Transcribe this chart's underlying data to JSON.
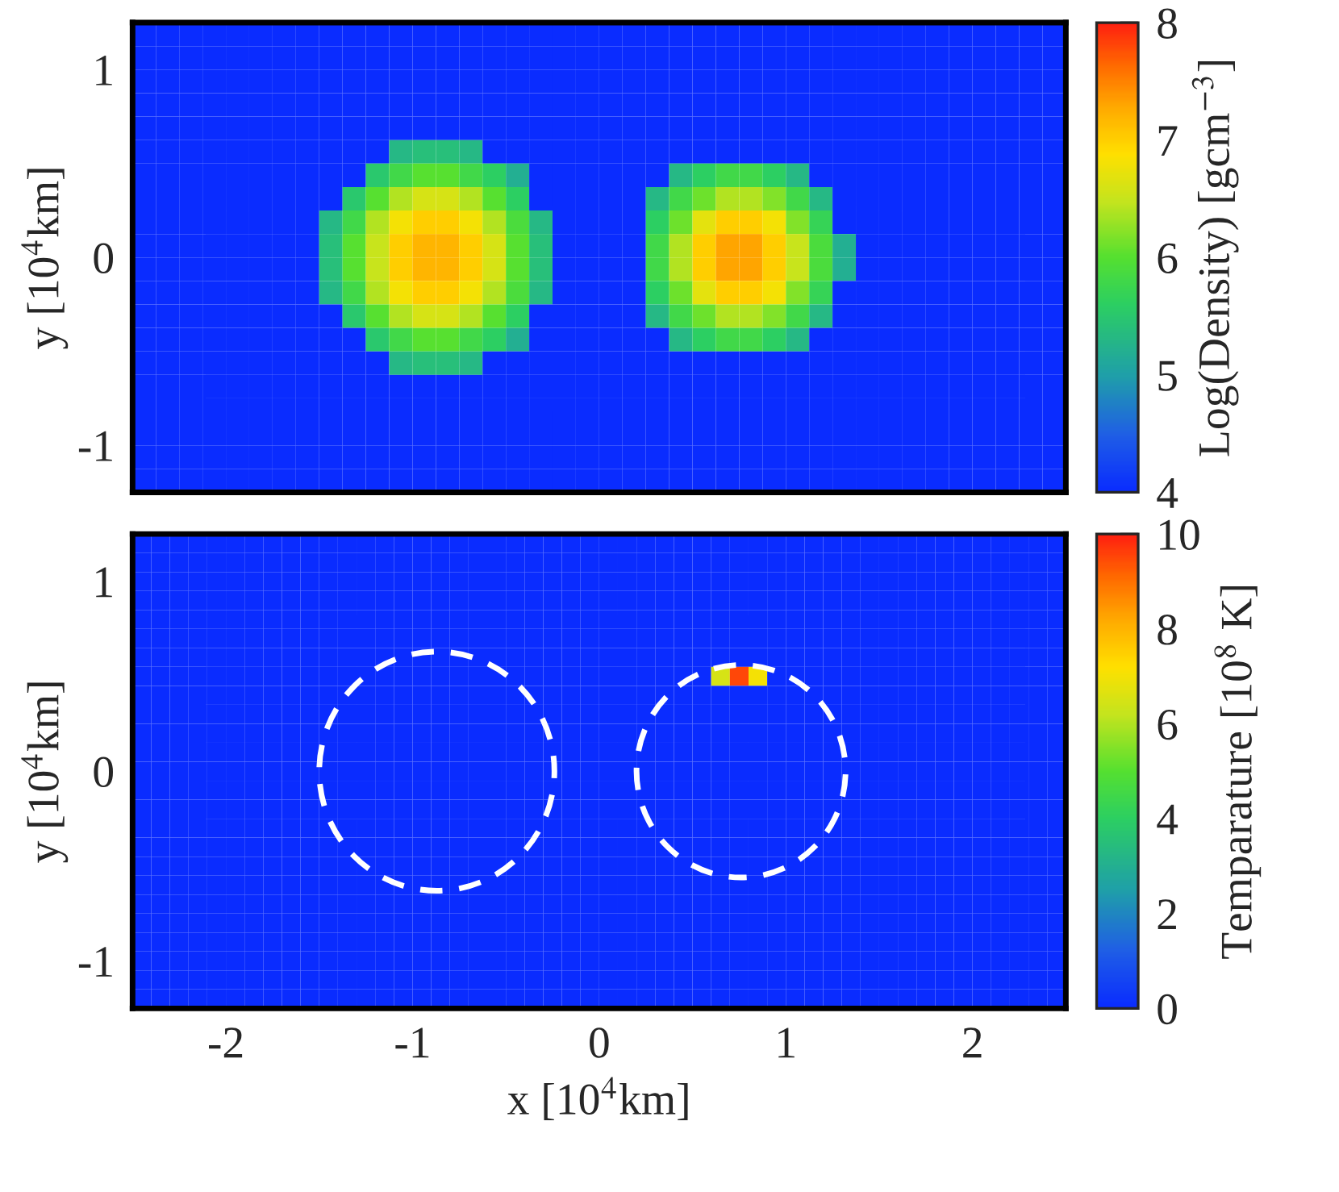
{
  "chart_data": [
    {
      "type": "heatmap",
      "ylabel": "y [10$^{4}$km]",
      "clabel": "Log(Density) [gcm$^{−3}$]",
      "xlim": [
        -2.5,
        2.5
      ],
      "xticks": [
        -2,
        -1,
        0,
        1,
        2
      ],
      "ylim": [
        -1.25,
        1.25
      ],
      "yticks": [
        -1,
        0,
        1
      ],
      "tick_labels": "y",
      "clim": [
        4,
        8
      ],
      "cticks": [
        4,
        5,
        6,
        7,
        8
      ],
      "cells": [
        [
          4,
          4,
          4,
          4,
          4,
          4,
          4,
          4,
          4,
          4,
          4,
          4,
          4,
          4,
          4,
          4,
          4,
          4,
          4,
          4,
          4,
          4,
          4,
          4,
          4,
          4,
          4,
          4,
          4,
          4,
          4,
          4,
          4,
          4,
          4,
          4,
          4,
          4,
          4,
          4
        ],
        [
          4,
          4,
          4,
          4,
          4,
          4,
          4,
          4,
          4,
          4,
          4,
          4,
          4,
          4,
          4,
          4,
          4,
          4,
          4,
          4,
          4,
          4,
          4,
          4,
          4,
          4,
          4,
          4,
          4,
          4,
          4,
          4,
          4,
          4,
          4,
          4,
          4,
          4,
          4,
          4
        ],
        [
          4,
          4,
          4,
          4,
          4,
          4,
          4,
          4,
          4,
          4,
          4,
          4,
          4,
          4,
          4,
          4,
          4,
          4,
          4,
          4,
          4,
          4,
          4,
          4,
          4,
          4,
          4,
          4,
          4,
          4,
          4,
          4,
          4,
          4,
          4,
          4,
          4,
          4,
          4,
          4
        ],
        [
          4,
          4,
          4,
          4,
          4,
          4,
          4,
          4,
          4,
          4,
          4,
          4,
          4,
          4,
          4,
          4,
          4,
          4,
          4,
          4,
          4,
          4,
          4,
          4,
          4,
          4,
          4,
          4,
          4,
          4,
          4,
          4,
          4,
          4,
          4,
          4,
          4,
          4,
          4,
          4
        ],
        [
          4,
          4,
          4,
          4,
          4,
          4,
          4,
          4,
          4,
          4,
          4,
          4,
          4,
          4,
          4,
          4,
          4,
          4,
          4,
          4,
          4,
          4,
          4,
          4,
          4,
          4,
          4,
          4,
          4,
          4,
          4,
          4,
          4,
          4,
          4,
          4,
          4,
          4,
          4,
          4
        ],
        [
          4,
          4,
          4,
          4,
          4,
          4,
          4,
          4,
          4,
          4,
          4,
          5.3,
          5.4,
          5.4,
          5.3,
          4,
          4,
          4,
          4,
          4,
          4,
          4,
          4,
          4,
          4,
          4,
          4,
          4,
          4,
          4,
          4,
          4,
          4,
          4,
          4,
          4,
          4,
          4,
          4,
          4
        ],
        [
          4,
          4,
          4,
          4,
          4,
          4,
          4,
          4,
          4,
          4,
          5.5,
          5.8,
          6.0,
          6.0,
          5.8,
          5.6,
          5.2,
          4,
          4,
          4,
          4,
          4,
          4,
          5.3,
          5.6,
          5.8,
          5.8,
          5.6,
          5.3,
          4,
          4,
          4,
          4,
          4,
          4,
          4,
          4,
          4,
          4,
          4
        ],
        [
          4,
          4,
          4,
          4,
          4,
          4,
          4,
          4,
          4,
          5.5,
          6.0,
          6.4,
          6.6,
          6.6,
          6.4,
          6.0,
          5.6,
          4,
          4,
          4,
          4,
          4,
          5.3,
          5.8,
          6.1,
          6.4,
          6.4,
          6.2,
          5.8,
          5.3,
          4,
          4,
          4,
          4,
          4,
          4,
          4,
          4,
          4,
          4
        ],
        [
          4,
          4,
          4,
          4,
          4,
          4,
          4,
          4,
          5.3,
          5.8,
          6.4,
          6.8,
          7.0,
          7.0,
          6.8,
          6.4,
          5.9,
          5.3,
          4,
          4,
          4,
          4,
          5.6,
          6.1,
          6.7,
          7.0,
          7.0,
          6.8,
          6.2,
          5.7,
          4,
          4,
          4,
          4,
          4,
          4,
          4,
          4,
          4,
          4
        ],
        [
          4,
          4,
          4,
          4,
          4,
          4,
          4,
          4,
          5.4,
          6.0,
          6.5,
          7.0,
          7.2,
          7.2,
          7.0,
          6.6,
          6.0,
          5.4,
          4,
          4,
          4,
          4,
          5.8,
          6.4,
          7.0,
          7.3,
          7.3,
          7.0,
          6.5,
          5.9,
          5.2,
          4,
          4,
          4,
          4,
          4,
          4,
          4,
          4,
          4
        ],
        [
          4,
          4,
          4,
          4,
          4,
          4,
          4,
          4,
          5.4,
          6.0,
          6.5,
          7.0,
          7.2,
          7.2,
          7.0,
          6.6,
          6.0,
          5.4,
          4,
          4,
          4,
          4,
          5.8,
          6.4,
          7.0,
          7.3,
          7.3,
          7.0,
          6.5,
          5.9,
          5.2,
          4,
          4,
          4,
          4,
          4,
          4,
          4,
          4,
          4
        ],
        [
          4,
          4,
          4,
          4,
          4,
          4,
          4,
          4,
          5.3,
          5.8,
          6.4,
          6.8,
          7.0,
          7.0,
          6.8,
          6.4,
          5.9,
          5.3,
          4,
          4,
          4,
          4,
          5.6,
          6.1,
          6.7,
          7.0,
          7.0,
          6.8,
          6.2,
          5.7,
          4,
          4,
          4,
          4,
          4,
          4,
          4,
          4,
          4,
          4
        ],
        [
          4,
          4,
          4,
          4,
          4,
          4,
          4,
          4,
          4,
          5.5,
          6.0,
          6.4,
          6.6,
          6.6,
          6.4,
          6.0,
          5.6,
          4,
          4,
          4,
          4,
          4,
          5.3,
          5.8,
          6.1,
          6.4,
          6.4,
          6.2,
          5.8,
          5.3,
          4,
          4,
          4,
          4,
          4,
          4,
          4,
          4,
          4,
          4
        ],
        [
          4,
          4,
          4,
          4,
          4,
          4,
          4,
          4,
          4,
          4,
          5.5,
          5.8,
          6.0,
          6.0,
          5.8,
          5.6,
          5.2,
          4,
          4,
          4,
          4,
          4,
          4,
          5.3,
          5.6,
          5.8,
          5.8,
          5.6,
          5.3,
          4,
          4,
          4,
          4,
          4,
          4,
          4,
          4,
          4,
          4,
          4
        ],
        [
          4,
          4,
          4,
          4,
          4,
          4,
          4,
          4,
          4,
          4,
          4,
          5.3,
          5.4,
          5.4,
          5.3,
          4,
          4,
          4,
          4,
          4,
          4,
          4,
          4,
          4,
          4,
          4,
          4,
          4,
          4,
          4,
          4,
          4,
          4,
          4,
          4,
          4,
          4,
          4,
          4,
          4
        ],
        [
          4,
          4,
          4,
          4,
          4,
          4,
          4,
          4,
          4,
          4,
          4,
          4,
          4,
          4,
          4,
          4,
          4,
          4,
          4,
          4,
          4,
          4,
          4,
          4,
          4,
          4,
          4,
          4,
          4,
          4,
          4,
          4,
          4,
          4,
          4,
          4,
          4,
          4,
          4,
          4
        ],
        [
          4,
          4,
          4,
          4,
          4,
          4,
          4,
          4,
          4,
          4,
          4,
          4,
          4,
          4,
          4,
          4,
          4,
          4,
          4,
          4,
          4,
          4,
          4,
          4,
          4,
          4,
          4,
          4,
          4,
          4,
          4,
          4,
          4,
          4,
          4,
          4,
          4,
          4,
          4,
          4
        ],
        [
          4,
          4,
          4,
          4,
          4,
          4,
          4,
          4,
          4,
          4,
          4,
          4,
          4,
          4,
          4,
          4,
          4,
          4,
          4,
          4,
          4,
          4,
          4,
          4,
          4,
          4,
          4,
          4,
          4,
          4,
          4,
          4,
          4,
          4,
          4,
          4,
          4,
          4,
          4,
          4
        ],
        [
          4,
          4,
          4,
          4,
          4,
          4,
          4,
          4,
          4,
          4,
          4,
          4,
          4,
          4,
          4,
          4,
          4,
          4,
          4,
          4,
          4,
          4,
          4,
          4,
          4,
          4,
          4,
          4,
          4,
          4,
          4,
          4,
          4,
          4,
          4,
          4,
          4,
          4,
          4,
          4
        ],
        [
          4,
          4,
          4,
          4,
          4,
          4,
          4,
          4,
          4,
          4,
          4,
          4,
          4,
          4,
          4,
          4,
          4,
          4,
          4,
          4,
          4,
          4,
          4,
          4,
          4,
          4,
          4,
          4,
          4,
          4,
          4,
          4,
          4,
          4,
          4,
          4,
          4,
          4,
          4,
          4
        ]
      ]
    },
    {
      "type": "heatmap",
      "xlabel": "x [10$^{4}$km]",
      "ylabel": "y [10$^{4}$km]",
      "clabel": "Temparature [10$^{8}$ K]",
      "xlim": [
        -2.5,
        2.5
      ],
      "xticks": [
        -2,
        -1,
        0,
        1,
        2
      ],
      "ylim": [
        -1.25,
        1.25
      ],
      "yticks": [
        -1,
        0,
        1
      ],
      "clim": [
        0,
        10
      ],
      "cticks": [
        0,
        2,
        4,
        6,
        8,
        10
      ],
      "cells": [
        [
          0,
          0,
          0,
          0,
          0,
          0,
          0,
          0,
          0,
          0,
          0,
          0,
          0,
          0,
          0,
          0,
          0,
          0,
          0,
          0,
          0,
          0,
          0,
          0,
          0,
          0,
          0,
          0,
          0,
          0,
          0,
          0,
          0,
          0,
          0,
          0,
          0,
          0,
          0,
          0,
          0,
          0,
          0,
          0,
          0,
          0,
          0,
          0,
          0,
          0
        ],
        [
          0,
          0,
          0,
          0,
          0,
          0,
          0,
          0,
          0,
          0,
          0,
          0,
          0,
          0,
          0,
          0,
          0,
          0,
          0,
          0,
          0,
          0,
          0,
          0,
          0,
          0,
          0,
          0,
          0,
          0,
          0,
          0,
          0,
          0,
          0,
          0,
          0,
          0,
          0,
          0,
          0,
          0,
          0,
          0,
          0,
          0,
          0,
          0,
          0,
          0
        ],
        [
          0,
          0,
          0,
          0,
          0,
          0,
          0,
          0,
          0,
          0,
          0,
          0,
          0,
          0,
          0,
          0,
          0,
          0,
          0,
          0,
          0,
          0,
          0,
          0,
          0,
          0,
          0,
          0,
          0,
          0,
          0,
          0,
          0,
          0,
          0,
          0,
          0,
          0,
          0,
          0,
          0,
          0,
          0,
          0,
          0,
          0,
          0,
          0,
          0,
          0
        ],
        [
          0,
          0,
          0,
          0,
          0,
          0,
          0,
          0,
          0,
          0,
          0,
          0,
          0,
          0,
          0,
          0,
          0,
          0,
          0,
          0,
          0,
          0,
          0,
          0,
          0,
          0,
          0,
          0,
          0,
          0,
          0,
          0,
          0,
          0,
          0,
          0,
          0,
          0,
          0,
          0,
          0,
          0,
          0,
          0,
          0,
          0,
          0,
          0,
          0,
          0
        ],
        [
          0,
          0,
          0,
          0,
          0,
          0,
          0,
          0,
          0,
          0,
          0,
          0,
          0,
          0,
          0,
          0,
          0,
          0,
          0,
          0,
          0,
          0,
          0,
          0,
          0,
          0,
          0,
          0,
          0,
          0,
          0,
          0,
          0,
          0,
          0,
          0,
          0,
          0,
          0,
          0,
          0,
          0,
          0,
          0,
          0,
          0,
          0,
          0,
          0,
          0
        ],
        [
          0,
          0,
          0,
          0,
          0,
          0,
          0,
          0,
          0,
          0,
          0,
          0,
          0,
          0,
          0,
          0,
          0,
          0,
          0,
          0,
          0,
          0,
          0,
          0,
          0,
          0,
          0,
          0,
          0,
          0,
          0,
          0,
          0,
          0,
          0,
          0,
          0,
          0,
          0,
          0,
          0,
          0,
          0,
          0,
          0,
          0,
          0,
          0,
          0,
          0
        ],
        [
          0,
          0,
          0,
          0,
          0,
          0,
          0,
          0,
          0,
          0,
          0,
          0,
          0,
          0,
          0,
          0,
          0,
          0,
          0,
          0,
          0,
          0,
          0,
          0,
          0,
          0,
          0,
          0,
          0,
          0,
          0,
          0,
          0,
          0,
          0,
          0,
          0,
          0,
          0,
          0,
          0,
          0,
          0,
          0,
          0,
          0,
          0,
          0,
          0,
          0
        ],
        [
          0,
          0,
          0,
          0,
          0,
          0,
          0,
          0,
          0,
          0,
          0,
          0,
          0,
          0,
          0,
          0,
          0,
          0,
          0,
          0,
          0,
          0,
          0,
          0,
          0,
          0,
          0,
          0,
          0,
          0,
          0,
          6.5,
          9.5,
          7,
          0,
          0,
          0,
          0,
          0,
          0,
          0,
          0,
          0,
          0,
          0,
          0,
          0,
          0,
          0,
          0
        ],
        [
          0,
          0,
          0,
          0,
          0,
          0,
          0,
          0,
          0,
          0,
          0,
          0,
          0,
          0,
          0,
          0,
          0,
          0,
          0,
          0,
          0,
          0,
          0,
          0,
          0,
          0,
          0,
          0,
          0,
          0,
          0,
          0,
          0,
          0,
          0,
          0,
          0,
          0,
          0,
          0,
          0,
          0,
          0,
          0,
          0,
          0,
          0,
          0,
          0,
          0
        ],
        [
          0,
          0,
          0,
          0,
          0,
          0,
          0,
          0,
          0,
          0,
          0,
          0,
          0,
          0,
          0,
          0,
          0,
          0,
          0,
          0,
          0,
          0,
          0,
          0,
          0,
          0,
          0,
          0,
          0,
          0,
          0,
          0,
          0,
          0,
          0,
          0,
          0,
          0,
          0,
          0,
          0,
          0,
          0,
          0,
          0,
          0,
          0,
          0,
          0,
          0
        ],
        [
          0,
          0,
          0,
          0,
          0,
          0,
          0,
          0,
          0,
          0,
          0,
          0,
          0,
          0,
          0,
          0,
          0,
          0,
          0,
          0,
          0,
          0,
          0,
          0,
          0,
          0,
          0,
          0,
          0,
          0,
          0,
          0,
          0,
          0,
          0,
          0,
          0,
          0,
          0,
          0,
          0,
          0,
          0,
          0,
          0,
          0,
          0,
          0,
          0,
          0
        ],
        [
          0,
          0,
          0,
          0,
          0,
          0,
          0,
          0,
          0,
          0,
          0,
          0,
          0,
          0,
          0,
          0,
          0,
          0,
          0,
          0,
          0,
          0,
          0,
          0,
          0,
          0,
          0,
          0,
          0,
          0,
          0,
          0,
          0,
          0,
          0,
          0,
          0,
          0,
          0,
          0,
          0,
          0,
          0,
          0,
          0,
          0,
          0,
          0,
          0,
          0
        ],
        [
          0,
          0,
          0,
          0,
          0,
          0,
          0,
          0,
          0,
          0,
          0,
          0,
          0,
          0,
          0,
          0,
          0,
          0,
          0,
          0,
          0,
          0,
          0,
          0,
          0,
          0,
          0,
          0,
          0,
          0,
          0,
          0,
          0,
          0,
          0,
          0,
          0,
          0,
          0,
          0,
          0,
          0,
          0,
          0,
          0,
          0,
          0,
          0,
          0,
          0
        ],
        [
          0,
          0,
          0,
          0,
          0,
          0,
          0,
          0,
          0,
          0,
          0,
          0,
          0,
          0,
          0,
          0,
          0,
          0,
          0,
          0,
          0,
          0,
          0,
          0,
          0,
          0,
          0,
          0,
          0,
          0,
          0,
          0,
          0,
          0,
          0,
          0,
          0,
          0,
          0,
          0,
          0,
          0,
          0,
          0,
          0,
          0,
          0,
          0,
          0,
          0
        ],
        [
          0,
          0,
          0,
          0,
          0,
          0,
          0,
          0,
          0,
          0,
          0,
          0,
          0,
          0,
          0,
          0,
          0,
          0,
          0,
          0,
          0,
          0,
          0,
          0,
          0,
          0,
          0,
          0,
          0,
          0,
          0,
          0,
          0,
          0,
          0,
          0,
          0,
          0,
          0,
          0,
          0,
          0,
          0,
          0,
          0,
          0,
          0,
          0,
          0,
          0
        ],
        [
          0,
          0,
          0,
          0,
          0,
          0,
          0,
          0,
          0,
          0,
          0,
          0,
          0,
          0,
          0,
          0,
          0,
          0,
          0,
          0,
          0,
          0,
          0,
          0,
          0,
          0,
          0,
          0,
          0,
          0,
          0,
          0,
          0,
          0,
          0,
          0,
          0,
          0,
          0,
          0,
          0,
          0,
          0,
          0,
          0,
          0,
          0,
          0,
          0,
          0
        ],
        [
          0,
          0,
          0,
          0,
          0,
          0,
          0,
          0,
          0,
          0,
          0,
          0,
          0,
          0,
          0,
          0,
          0,
          0,
          0,
          0,
          0,
          0,
          0,
          0,
          0,
          0,
          0,
          0,
          0,
          0,
          0,
          0,
          0,
          0,
          0,
          0,
          0,
          0,
          0,
          0,
          0,
          0,
          0,
          0,
          0,
          0,
          0,
          0,
          0,
          0
        ],
        [
          0,
          0,
          0,
          0,
          0,
          0,
          0,
          0,
          0,
          0,
          0,
          0,
          0,
          0,
          0,
          0,
          0,
          0,
          0,
          0,
          0,
          0,
          0,
          0,
          0,
          0,
          0,
          0,
          0,
          0,
          0,
          0,
          0,
          0,
          0,
          0,
          0,
          0,
          0,
          0,
          0,
          0,
          0,
          0,
          0,
          0,
          0,
          0,
          0,
          0
        ],
        [
          0,
          0,
          0,
          0,
          0,
          0,
          0,
          0,
          0,
          0,
          0,
          0,
          0,
          0,
          0,
          0,
          0,
          0,
          0,
          0,
          0,
          0,
          0,
          0,
          0,
          0,
          0,
          0,
          0,
          0,
          0,
          0,
          0,
          0,
          0,
          0,
          0,
          0,
          0,
          0,
          0,
          0,
          0,
          0,
          0,
          0,
          0,
          0,
          0,
          0
        ],
        [
          0,
          0,
          0,
          0,
          0,
          0,
          0,
          0,
          0,
          0,
          0,
          0,
          0,
          0,
          0,
          0,
          0,
          0,
          0,
          0,
          0,
          0,
          0,
          0,
          0,
          0,
          0,
          0,
          0,
          0,
          0,
          0,
          0,
          0,
          0,
          0,
          0,
          0,
          0,
          0,
          0,
          0,
          0,
          0,
          0,
          0,
          0,
          0,
          0,
          0
        ],
        [
          0,
          0,
          0,
          0,
          0,
          0,
          0,
          0,
          0,
          0,
          0,
          0,
          0,
          0,
          0,
          0,
          0,
          0,
          0,
          0,
          0,
          0,
          0,
          0,
          0,
          0,
          0,
          0,
          0,
          0,
          0,
          0,
          0,
          0,
          0,
          0,
          0,
          0,
          0,
          0,
          0,
          0,
          0,
          0,
          0,
          0,
          0,
          0,
          0,
          0
        ],
        [
          0,
          0,
          0,
          0,
          0,
          0,
          0,
          0,
          0,
          0,
          0,
          0,
          0,
          0,
          0,
          0,
          0,
          0,
          0,
          0,
          0,
          0,
          0,
          0,
          0,
          0,
          0,
          0,
          0,
          0,
          0,
          0,
          0,
          0,
          0,
          0,
          0,
          0,
          0,
          0,
          0,
          0,
          0,
          0,
          0,
          0,
          0,
          0,
          0,
          0
        ],
        [
          0,
          0,
          0,
          0,
          0,
          0,
          0,
          0,
          0,
          0,
          0,
          0,
          0,
          0,
          0,
          0,
          0,
          0,
          0,
          0,
          0,
          0,
          0,
          0,
          0,
          0,
          0,
          0,
          0,
          0,
          0,
          0,
          0,
          0,
          0,
          0,
          0,
          0,
          0,
          0,
          0,
          0,
          0,
          0,
          0,
          0,
          0,
          0,
          0,
          0
        ],
        [
          0,
          0,
          0,
          0,
          0,
          0,
          0,
          0,
          0,
          0,
          0,
          0,
          0,
          0,
          0,
          0,
          0,
          0,
          0,
          0,
          0,
          0,
          0,
          0,
          0,
          0,
          0,
          0,
          0,
          0,
          0,
          0,
          0,
          0,
          0,
          0,
          0,
          0,
          0,
          0,
          0,
          0,
          0,
          0,
          0,
          0,
          0,
          0,
          0,
          0
        ],
        [
          0,
          0,
          0,
          0,
          0,
          0,
          0,
          0,
          0,
          0,
          0,
          0,
          0,
          0,
          0,
          0,
          0,
          0,
          0,
          0,
          0,
          0,
          0,
          0,
          0,
          0,
          0,
          0,
          0,
          0,
          0,
          0,
          0,
          0,
          0,
          0,
          0,
          0,
          0,
          0,
          0,
          0,
          0,
          0,
          0,
          0,
          0,
          0,
          0,
          0
        ]
      ]
    }
  ]
}
